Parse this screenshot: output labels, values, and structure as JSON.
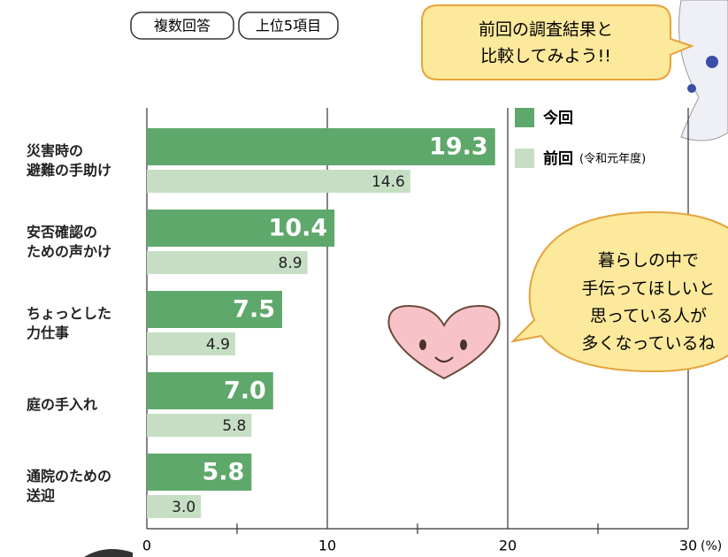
{
  "chart_data": {
    "type": "bar",
    "orientation": "horizontal",
    "tags": [
      "複数回答",
      "上位5項目"
    ],
    "categories": [
      "災害時の\n避難の手助け",
      "安否確認の\nための声かけ",
      "ちょっとした\n力仕事",
      "庭の手入れ",
      "通院のための\n送迎"
    ],
    "series": [
      {
        "name": "今回",
        "color": "#5fa86c",
        "values": [
          19.3,
          10.4,
          7.5,
          7.0,
          5.8
        ],
        "value_labels": [
          "19.3",
          "10.4",
          "7.5",
          "7.0",
          "5.8"
        ]
      },
      {
        "name": "前回",
        "name_note": "(令和元年度)",
        "color": "#c6dfc4",
        "values": [
          14.6,
          8.9,
          4.9,
          5.8,
          3.0
        ],
        "value_labels": [
          "14.6",
          "8.9",
          "4.9",
          "5.8",
          "3.0"
        ]
      }
    ],
    "xlim": [
      0,
      30
    ],
    "xticks": [
      0,
      10,
      20,
      30
    ],
    "minor_xticks": [
      5,
      15,
      25
    ],
    "x_unit": "(%)",
    "grid": true,
    "bubbles": [
      [
        "前回の調査結果と",
        "比較してみよう!!"
      ],
      [
        "暮らしの中で",
        "手伝ってほしいと",
        "思っている人が",
        "多くなっているね"
      ]
    ]
  }
}
